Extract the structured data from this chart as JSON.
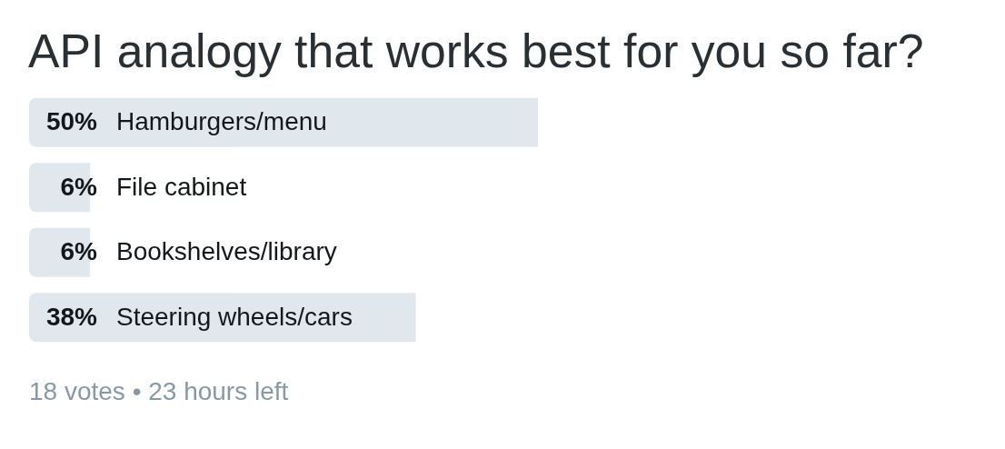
{
  "chart_data": {
    "type": "bar",
    "orientation": "horizontal",
    "title": "API analogy that works best for you so far?",
    "categories": [
      "Hamburgers/menu",
      "File cabinet",
      "Bookshelves/library",
      "Steering wheels/cars"
    ],
    "values": [
      50,
      6,
      6,
      38
    ],
    "value_labels": [
      "50%",
      "6%",
      "6%",
      "38%"
    ],
    "color": "#e1e8ed",
    "tick_labels": "y",
    "legend": false,
    "annotations": [
      "18 votes • 23 hours left"
    ]
  }
}
